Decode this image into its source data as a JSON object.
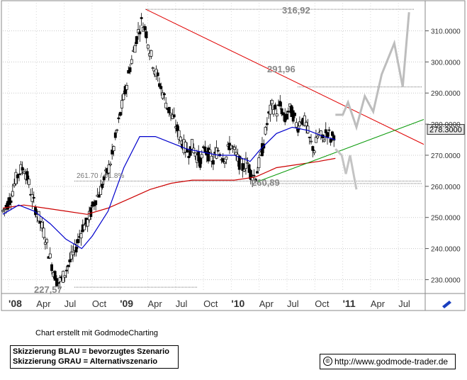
{
  "chart_data": {
    "type": "candlestick",
    "x_tick_labels": [
      "'08",
      "Apr",
      "Jul",
      "Oct",
      "'09",
      "Apr",
      "Jul",
      "Oct",
      "'10",
      "Apr",
      "Jul",
      "Oct",
      "'11",
      "Apr",
      "Jul"
    ],
    "y_tick_labels": [
      "310.0000",
      "300.0000",
      "290.0000",
      "280.0000",
      "270.0000",
      "260.0000",
      "250.0000",
      "240.0000",
      "230.0000"
    ],
    "y_ticks": [
      310,
      300,
      290,
      280,
      270,
      260,
      250,
      240,
      230
    ],
    "ylim": [
      226,
      319
    ],
    "last_price": 278.3,
    "last_price_label": "278.3000",
    "annotations": {
      "high": {
        "label": "316,92",
        "value": 316.92
      },
      "mid_high": {
        "label": "291,96",
        "value": 291.96
      },
      "low_2010": {
        "label": "260,89",
        "value": 260.89
      },
      "low_2009": {
        "label": "227,57",
        "value": 227.57
      },
      "fib_label": "261.70 / 61.8%",
      "fib_value": 261.7
    },
    "series": [
      {
        "name": "",
        "kind": "ma-short",
        "color": "#0000cc"
      },
      {
        "name": "",
        "kind": "ma-long",
        "color": "#cc0000"
      }
    ],
    "price_path": [
      [
        0,
        252
      ],
      [
        4,
        254
      ],
      [
        8,
        257
      ],
      [
        12,
        262
      ],
      [
        16,
        265
      ],
      [
        20,
        266
      ],
      [
        24,
        262
      ],
      [
        28,
        256
      ],
      [
        32,
        252
      ],
      [
        36,
        248
      ],
      [
        40,
        244
      ],
      [
        44,
        238
      ],
      [
        48,
        233
      ],
      [
        52,
        229
      ],
      [
        56,
        230
      ],
      [
        60,
        233
      ],
      [
        64,
        236
      ],
      [
        68,
        239
      ],
      [
        72,
        243
      ],
      [
        76,
        247
      ],
      [
        80,
        248
      ],
      [
        84,
        252
      ],
      [
        88,
        256
      ],
      [
        92,
        258
      ],
      [
        96,
        262
      ],
      [
        100,
        265
      ],
      [
        104,
        270
      ],
      [
        108,
        277
      ],
      [
        112,
        284
      ],
      [
        116,
        290
      ],
      [
        120,
        297
      ],
      [
        124,
        303
      ],
      [
        128,
        309
      ],
      [
        132,
        313
      ],
      [
        136,
        310
      ],
      [
        140,
        303
      ],
      [
        144,
        298
      ],
      [
        148,
        294
      ],
      [
        152,
        290
      ],
      [
        156,
        286
      ],
      [
        160,
        283
      ],
      [
        164,
        280
      ],
      [
        168,
        276
      ],
      [
        172,
        273
      ],
      [
        176,
        271
      ],
      [
        180,
        273
      ],
      [
        184,
        270
      ],
      [
        188,
        268
      ],
      [
        192,
        272
      ],
      [
        196,
        270
      ],
      [
        200,
        268
      ],
      [
        204,
        272
      ],
      [
        208,
        270
      ],
      [
        212,
        269
      ],
      [
        216,
        274
      ],
      [
        220,
        271
      ],
      [
        224,
        268
      ],
      [
        228,
        266
      ],
      [
        232,
        268
      ],
      [
        236,
        264
      ],
      [
        240,
        263
      ],
      [
        244,
        268
      ],
      [
        248,
        274
      ],
      [
        252,
        282
      ],
      [
        256,
        286
      ],
      [
        260,
        284
      ],
      [
        264,
        286
      ],
      [
        268,
        281
      ],
      [
        272,
        285
      ],
      [
        276,
        283
      ],
      [
        280,
        279
      ],
      [
        284,
        282
      ],
      [
        288,
        280
      ],
      [
        292,
        274
      ],
      [
        296,
        272
      ],
      [
        300,
        277
      ],
      [
        304,
        275
      ],
      [
        308,
        278
      ],
      [
        312,
        275
      ],
      [
        316,
        278
      ]
    ],
    "blue_ma": [
      [
        0,
        251
      ],
      [
        15,
        254
      ],
      [
        30,
        252
      ],
      [
        45,
        248
      ],
      [
        60,
        243
      ],
      [
        75,
        240
      ],
      [
        85,
        244
      ],
      [
        100,
        252
      ],
      [
        115,
        266
      ],
      [
        130,
        276
      ],
      [
        145,
        276
      ],
      [
        160,
        274
      ],
      [
        175,
        272
      ],
      [
        190,
        271
      ],
      [
        205,
        270
      ],
      [
        220,
        270
      ],
      [
        235,
        268
      ],
      [
        245,
        272
      ],
      [
        260,
        277
      ],
      [
        275,
        279
      ],
      [
        290,
        278
      ],
      [
        305,
        276
      ],
      [
        316,
        275
      ]
    ],
    "red_ma": [
      [
        0,
        253
      ],
      [
        20,
        254
      ],
      [
        40,
        253
      ],
      [
        60,
        252
      ],
      [
        80,
        251
      ],
      [
        100,
        253
      ],
      [
        120,
        256
      ],
      [
        140,
        259
      ],
      [
        160,
        261
      ],
      [
        180,
        262
      ],
      [
        200,
        262
      ],
      [
        220,
        262
      ],
      [
        240,
        263
      ],
      [
        260,
        266
      ],
      [
        280,
        267
      ],
      [
        300,
        268
      ],
      [
        316,
        269
      ]
    ],
    "scenario_blue_path": [
      [
        316,
        283
      ],
      [
        323,
        283
      ],
      [
        328,
        287
      ],
      [
        336,
        279
      ],
      [
        344,
        289
      ],
      [
        352,
        284
      ],
      [
        360,
        296
      ],
      [
        372,
        306
      ],
      [
        380,
        292
      ],
      [
        386,
        316
      ]
    ],
    "scenario_gray_path": [
      [
        316,
        272
      ],
      [
        322,
        270
      ],
      [
        326,
        264
      ],
      [
        330,
        270
      ],
      [
        336,
        259
      ]
    ]
  },
  "footer": {
    "credit": "Chart erstellt mit GodmodeCharting",
    "legend_blue": "Skizzierung BLAU = bevorzugtes Szenario",
    "legend_gray": "Skizzierung GRAU = Alternativszenario",
    "url": "http://www.godmode-trader.de",
    "copyright_symbol": "©"
  }
}
